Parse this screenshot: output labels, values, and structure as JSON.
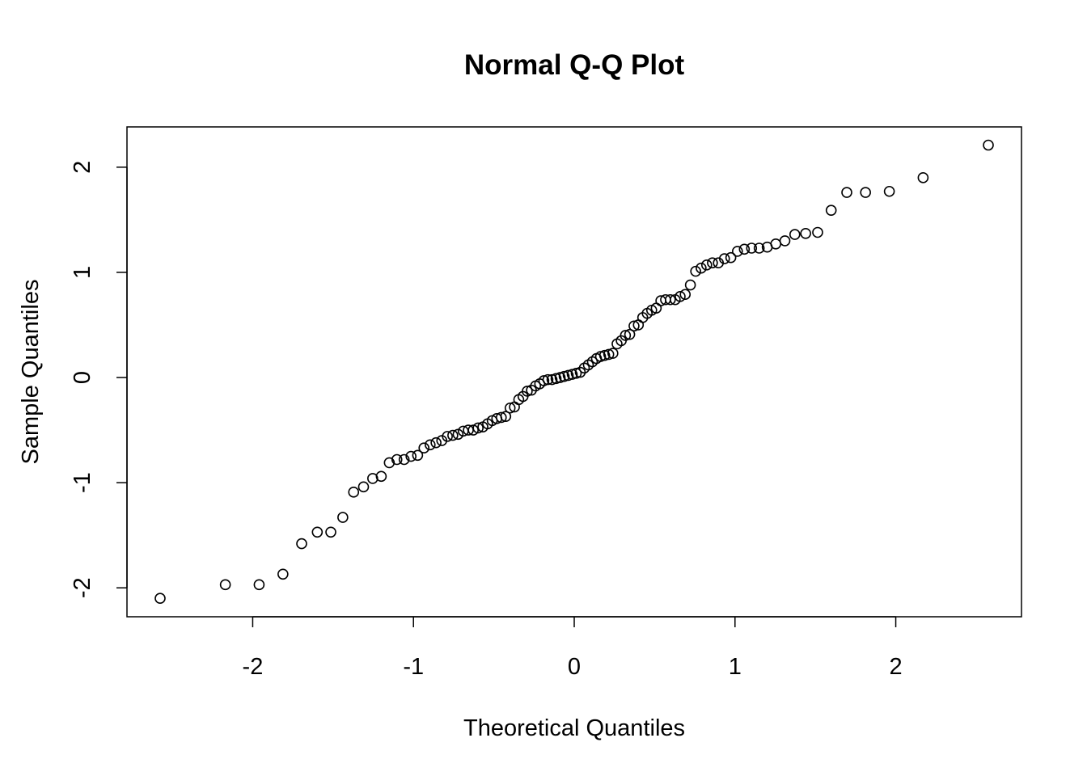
{
  "chart_data": {
    "type": "scatter",
    "title": "Normal Q-Q Plot",
    "x_label": "Theoretical Quantiles",
    "y_label": "Sample Quantiles",
    "x": [
      -2.5758,
      -2.1701,
      -1.96,
      -1.8119,
      -1.6954,
      -1.5982,
      -1.5141,
      -1.4395,
      -1.3722,
      -1.3106,
      -1.2536,
      -1.2004,
      -1.1503,
      -1.1031,
      -1.0581,
      -1.0152,
      -0.9741,
      -0.9346,
      -0.8965,
      -0.8596,
      -0.8239,
      -0.7892,
      -0.7554,
      -0.7225,
      -0.6903,
      -0.6588,
      -0.628,
      -0.5978,
      -0.5681,
      -0.5388,
      -0.5101,
      -0.4817,
      -0.4538,
      -0.4261,
      -0.3989,
      -0.3719,
      -0.3451,
      -0.3186,
      -0.2924,
      -0.2663,
      -0.2404,
      -0.2147,
      -0.1891,
      -0.1637,
      -0.1383,
      -0.113,
      -0.0878,
      -0.0627,
      -0.0376,
      -0.0125,
      0.0125,
      0.0376,
      0.0627,
      0.0878,
      0.113,
      0.1383,
      0.1637,
      0.1891,
      0.2147,
      0.2404,
      0.2663,
      0.2924,
      0.3186,
      0.3451,
      0.3719,
      0.3989,
      0.4261,
      0.4538,
      0.4817,
      0.5101,
      0.5388,
      0.5681,
      0.5978,
      0.628,
      0.6588,
      0.6903,
      0.7225,
      0.7554,
      0.7892,
      0.8239,
      0.8596,
      0.8965,
      0.9346,
      0.9741,
      1.0152,
      1.0581,
      1.1031,
      1.1503,
      1.2004,
      1.2536,
      1.3106,
      1.3722,
      1.4395,
      1.5141,
      1.5982,
      1.6954,
      1.8119,
      1.96,
      2.1701,
      2.5758
    ],
    "y": [
      -2.1,
      -1.97,
      -1.97,
      -1.87,
      -1.58,
      -1.47,
      -1.47,
      -1.33,
      -1.09,
      -1.04,
      -0.96,
      -0.94,
      -0.81,
      -0.78,
      -0.78,
      -0.75,
      -0.74,
      -0.67,
      -0.64,
      -0.62,
      -0.6,
      -0.56,
      -0.55,
      -0.54,
      -0.51,
      -0.5,
      -0.5,
      -0.48,
      -0.47,
      -0.44,
      -0.41,
      -0.39,
      -0.38,
      -0.37,
      -0.29,
      -0.28,
      -0.21,
      -0.18,
      -0.13,
      -0.12,
      -0.08,
      -0.06,
      -0.03,
      -0.02,
      -0.02,
      -0.01,
      0.0,
      0.01,
      0.02,
      0.03,
      0.04,
      0.05,
      0.09,
      0.12,
      0.15,
      0.18,
      0.2,
      0.21,
      0.22,
      0.23,
      0.32,
      0.35,
      0.4,
      0.41,
      0.49,
      0.5,
      0.57,
      0.61,
      0.64,
      0.66,
      0.73,
      0.74,
      0.74,
      0.74,
      0.77,
      0.79,
      0.88,
      1.01,
      1.04,
      1.07,
      1.09,
      1.09,
      1.13,
      1.14,
      1.2,
      1.22,
      1.23,
      1.23,
      1.24,
      1.27,
      1.3,
      1.36,
      1.37,
      1.38,
      1.59,
      1.76,
      1.76,
      1.77,
      1.9,
      2.21
    ],
    "xlim": [
      -2.782,
      2.782
    ],
    "ylim": [
      -2.275,
      2.383
    ],
    "xticks": [
      -2,
      -1,
      0,
      1,
      2
    ],
    "yticks": [
      -2,
      -1,
      0,
      1,
      2
    ],
    "color": "#000000"
  }
}
